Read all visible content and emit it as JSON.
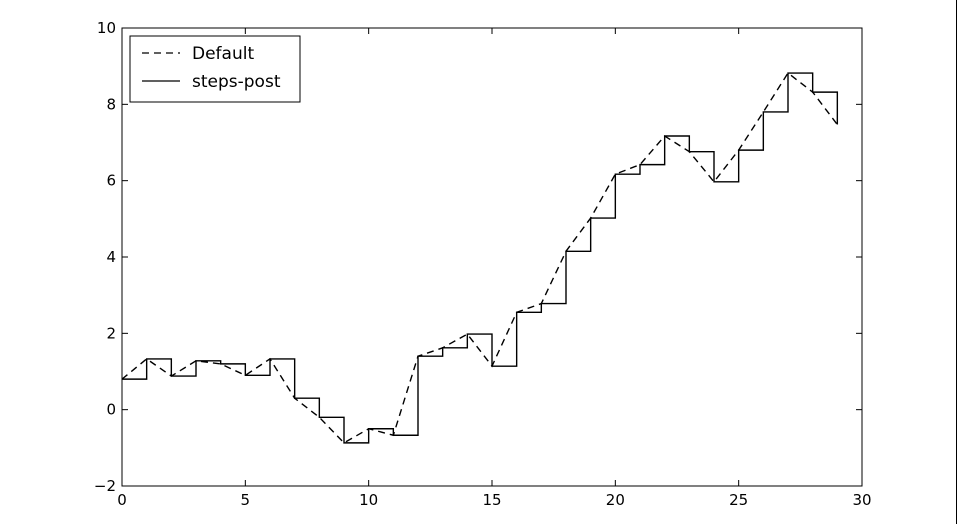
{
  "chart_data": {
    "type": "line",
    "title": "",
    "xlabel": "",
    "ylabel": "",
    "xlim": [
      0,
      30
    ],
    "ylim": [
      -2,
      10
    ],
    "xticks": [
      0,
      5,
      10,
      15,
      20,
      25,
      30
    ],
    "yticks": [
      -2,
      0,
      2,
      4,
      6,
      8,
      10
    ],
    "xtick_labels": [
      "0",
      "5",
      "10",
      "15",
      "20",
      "25",
      "30"
    ],
    "ytick_labels": [
      "−2",
      "0",
      "2",
      "4",
      "6",
      "8",
      "10"
    ],
    "grid": false,
    "legend": {
      "position": "top-left"
    },
    "x": [
      0,
      1,
      2,
      3,
      4,
      5,
      6,
      7,
      8,
      9,
      10,
      11,
      12,
      13,
      14,
      15,
      16,
      17,
      18,
      19,
      20,
      21,
      22,
      23,
      24,
      25,
      26,
      27,
      28,
      29
    ],
    "series": [
      {
        "name": "Default",
        "style": "dashed",
        "color": "#000000",
        "values": [
          0.8,
          1.33,
          0.88,
          1.28,
          1.2,
          0.9,
          1.33,
          0.3,
          -0.2,
          -0.87,
          -0.5,
          -0.67,
          1.4,
          1.62,
          1.98,
          1.14,
          2.55,
          2.78,
          4.15,
          5.02,
          6.17,
          6.42,
          7.17,
          6.76,
          5.97,
          6.8,
          7.8,
          8.82,
          8.32,
          7.47
        ]
      },
      {
        "name": "steps-post",
        "style": "solid",
        "drawstyle": "steps-post",
        "color": "#000000",
        "values": [
          0.8,
          1.33,
          0.88,
          1.28,
          1.2,
          0.9,
          1.33,
          0.3,
          -0.2,
          -0.87,
          -0.5,
          -0.67,
          1.4,
          1.62,
          1.98,
          1.14,
          2.55,
          2.78,
          4.15,
          5.02,
          6.17,
          6.42,
          7.17,
          6.76,
          5.97,
          6.8,
          7.8,
          8.82,
          8.32,
          7.47
        ]
      }
    ]
  }
}
